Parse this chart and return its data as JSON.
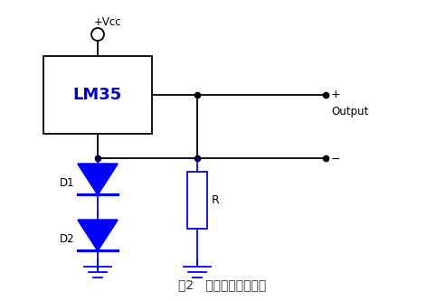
{
  "title": "图2   传感器电路原理图",
  "title_fontsize": 10,
  "bg_color": "#ffffff",
  "lm35_text": "LM35",
  "lm35_color": "#0000cc",
  "lm35_fontsize": 13,
  "line_color": "#000000",
  "diode_color": "#0000ff",
  "vcc_label": "+Vcc",
  "d1_label": "D1",
  "d2_label": "D2",
  "r_label": "R",
  "plus_label": "+",
  "minus_label": "−",
  "output_label": "Output"
}
